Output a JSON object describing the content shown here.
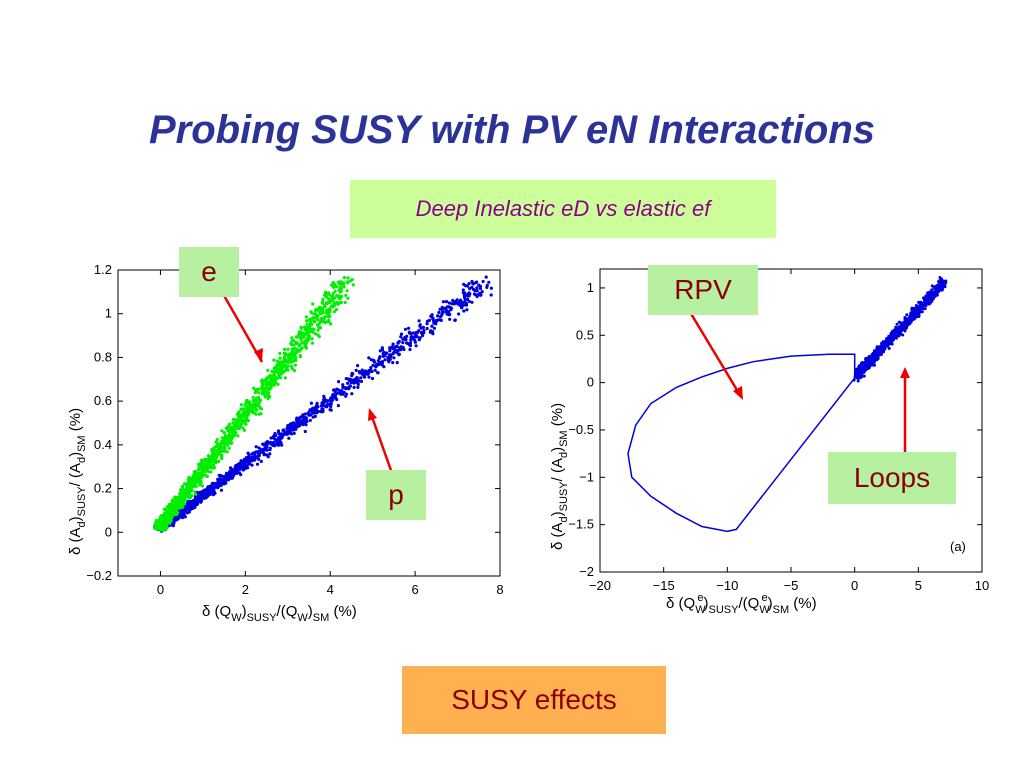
{
  "slide": {
    "title": "Probing SUSY with PV eN Interactions",
    "subtitle": "Deep Inelastic eD vs elastic ef",
    "footer": "SUSY effects"
  },
  "colors": {
    "green": "#00ee00",
    "blue": "#0000dd",
    "arrow": "#ee0000",
    "title": "#2b3399"
  },
  "chart_data": [
    {
      "type": "scatter",
      "xlabel": "δ (Q_W)_SUSY/(Q_W)_SM  (%)",
      "ylabel": "δ (A_d)_SUSY/(A_d)_SM  (%)",
      "xlim": [
        -1,
        8
      ],
      "ylim": [
        -0.2,
        1.2
      ],
      "xticks": [
        "0",
        "2",
        "4",
        "6",
        "8"
      ],
      "yticks": [
        "−0.2",
        "0",
        "0.2",
        "0.4",
        "0.6",
        "0.8",
        "1",
        "1.2"
      ],
      "grid": false,
      "annotations": [
        "e",
        "p"
      ],
      "series": [
        {
          "name": "e",
          "color": "#00ee00",
          "trend": {
            "x": [
              0,
              4.4
            ],
            "y": [
              0.03,
              1.15
            ]
          },
          "count": 1500
        },
        {
          "name": "p",
          "color": "#0000dd",
          "trend": {
            "x": [
              0,
              7.7
            ],
            "y": [
              0.02,
              1.15
            ]
          },
          "count": 1300
        }
      ]
    },
    {
      "type": "line",
      "xlabel": "δ (Q^e_W)_SUSY/(Q^e_W)_SM  (%)",
      "ylabel": "δ (A_d)_SUSY/(A_d)_SM  (%)",
      "xlim": [
        -20,
        10
      ],
      "ylim": [
        -2,
        1.2
      ],
      "xticks": [
        "−20",
        "−15",
        "−10",
        "−5",
        "0",
        "5",
        "10"
      ],
      "yticks": [
        "−2",
        "−1.5",
        "−1",
        "−0.5",
        "0",
        "0.5",
        "1"
      ],
      "grid": false,
      "panel_label": "(a)",
      "annotations": [
        "RPV",
        "Loops"
      ],
      "series": [
        {
          "name": "RPV",
          "color": "#0000dd",
          "x": [
            0,
            0,
            -2,
            -5,
            -8,
            -10,
            -12,
            -14,
            -16,
            -17.2,
            -17.8,
            -17.5,
            -16,
            -14,
            -12,
            -10,
            -9.3,
            0
          ],
          "y": [
            0.05,
            0.3,
            0.3,
            0.28,
            0.22,
            0.15,
            0.06,
            -0.05,
            -0.22,
            -0.45,
            -0.75,
            -1.0,
            -1.2,
            -1.38,
            -1.52,
            -1.57,
            -1.55,
            0.05
          ]
        },
        {
          "name": "Loops",
          "color": "#0000dd",
          "trend": {
            "x": [
              0,
              7.6
            ],
            "y": [
              0.05,
              1.15
            ]
          },
          "count": 1000
        }
      ]
    }
  ]
}
